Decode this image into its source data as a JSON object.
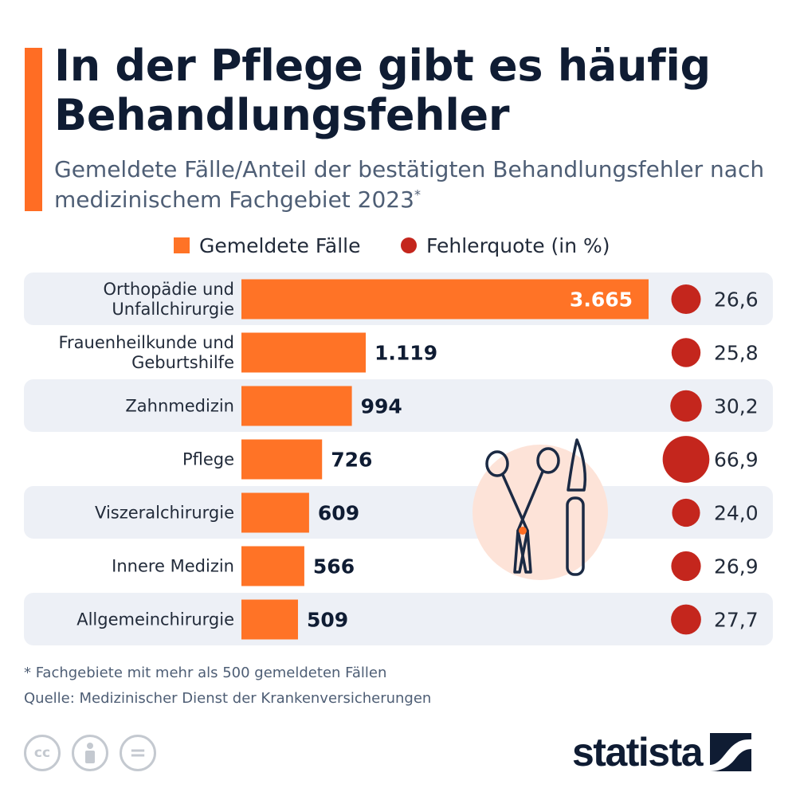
{
  "header": {
    "title": "In der Pflege gibt es häufig Behandlungsfehler",
    "subtitle": "Gemeldete Fälle/Anteil der bestätigten Behandlungsfehler nach medizinischem Fachgebiet 2023",
    "subtitle_marker": "*"
  },
  "legend": {
    "cases_label": "Gemeldete Fälle",
    "rate_label": "Fehlerquote (in %)"
  },
  "colors": {
    "accent": "#ff6d24",
    "bar": "#ff7326",
    "dot": "#c4261d",
    "row_band": "#edf0f6",
    "title": "#0f1c33",
    "subtitle": "#4e5e75",
    "icon_bg": "#fde3d8"
  },
  "chart_data": {
    "type": "bar",
    "orientation": "horizontal",
    "categories": [
      [
        "Orthopädie und",
        "Unfallchirurgie"
      ],
      [
        "Frauenheilkunde und",
        "Geburtshilfe"
      ],
      [
        "Zahnmedizin"
      ],
      [
        "Pflege"
      ],
      [
        "Viszeralchirurgie"
      ],
      [
        "Innere Medizin"
      ],
      [
        "Allgemeinchirurgie"
      ]
    ],
    "series": [
      {
        "name": "Gemeldete Fälle",
        "values": [
          3665,
          1119,
          994,
          726,
          609,
          566,
          509
        ],
        "labels": [
          "3.665",
          "1.119",
          "994",
          "726",
          "609",
          "566",
          "509"
        ]
      },
      {
        "name": "Fehlerquote (in %)",
        "values": [
          26.6,
          25.8,
          30.2,
          66.9,
          24.0,
          26.9,
          27.7
        ],
        "labels": [
          "26,6",
          "25,8",
          "30,2",
          "66,9",
          "24,0",
          "26,9",
          "27,7"
        ]
      }
    ],
    "xlim": [
      0,
      3665
    ],
    "grid": false,
    "legend_position": "top"
  },
  "footer": {
    "footnote": "* Fachgebiete mit mehr als 500 gemeldeten Fällen",
    "source": "Quelle: Medizinischer Dienst der Krankenversicherungen",
    "license_icons": [
      "cc",
      "by",
      "nd"
    ],
    "license_cc": "cc",
    "license_nd": "=",
    "logo": "statista"
  }
}
